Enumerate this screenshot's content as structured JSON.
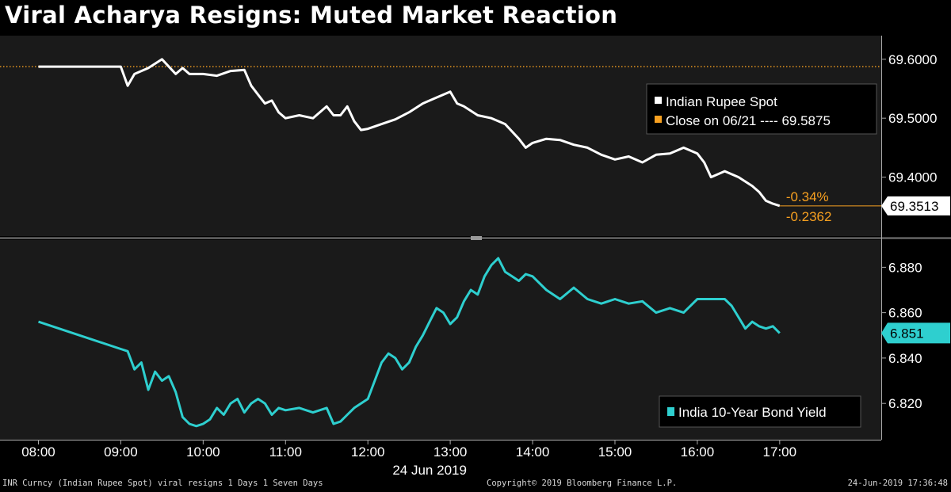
{
  "title": "Viral Acharya Resigns: Muted Market Reaction",
  "colors": {
    "rupee_line": "#ffffff",
    "close_line": "#f7a020",
    "bond_line": "#2ecfcf",
    "panel_bg": "#1a1a1a",
    "change_text": "#f7a020"
  },
  "chart_data": [
    {
      "type": "line",
      "panel": "top",
      "ylim": [
        69.3,
        69.64
      ],
      "yticks": [
        69.4,
        69.5,
        69.6
      ],
      "ytick_labels": [
        "69.4000",
        "69.5000",
        "69.6000"
      ],
      "series": [
        {
          "name": "Indian Rupee Spot",
          "x": [
            "08:00",
            "09:00",
            "09:05",
            "09:10",
            "09:20",
            "09:30",
            "09:40",
            "09:45",
            "09:50",
            "10:00",
            "10:10",
            "10:20",
            "10:30",
            "10:35",
            "10:40",
            "10:45",
            "10:50",
            "10:55",
            "11:00",
            "11:10",
            "11:20",
            "11:30",
            "11:35",
            "11:40",
            "11:45",
            "11:50",
            "11:55",
            "12:00",
            "12:10",
            "12:20",
            "12:30",
            "12:40",
            "12:50",
            "13:00",
            "13:05",
            "13:10",
            "13:20",
            "13:30",
            "13:40",
            "13:50",
            "13:55",
            "14:00",
            "14:10",
            "14:20",
            "14:30",
            "14:40",
            "14:50",
            "15:00",
            "15:10",
            "15:20",
            "15:30",
            "15:40",
            "15:50",
            "16:00",
            "16:05",
            "16:10",
            "16:15",
            "16:20",
            "16:30",
            "16:40",
            "16:45",
            "16:50",
            "16:55",
            "17:00"
          ],
          "values": [
            69.5875,
            69.5875,
            69.555,
            69.575,
            69.585,
            69.6,
            69.575,
            69.585,
            69.575,
            69.575,
            69.572,
            69.58,
            69.582,
            69.555,
            69.54,
            69.525,
            69.53,
            69.51,
            69.5,
            69.505,
            69.5,
            69.52,
            69.505,
            69.505,
            69.52,
            69.495,
            69.48,
            69.482,
            69.49,
            69.498,
            69.51,
            69.525,
            69.535,
            69.545,
            69.525,
            69.52,
            69.505,
            69.5,
            69.49,
            69.465,
            69.45,
            69.458,
            69.465,
            69.463,
            69.455,
            69.45,
            69.438,
            69.43,
            69.435,
            69.425,
            69.438,
            69.44,
            69.45,
            69.44,
            69.425,
            69.4,
            69.405,
            69.41,
            69.4,
            69.385,
            69.375,
            69.36,
            69.355,
            69.3513
          ]
        },
        {
          "name": "Close on 06/21",
          "value": 69.5875
        }
      ],
      "legend": {
        "position": "top-right",
        "entries": [
          "Indian Rupee Spot",
          "Close on 06/21 ---- 69.5875"
        ]
      },
      "last_value_label": "69.3513",
      "change_percent": "-0.34%",
      "change_abs": "-0.2362"
    },
    {
      "type": "line",
      "panel": "bottom",
      "ylim": [
        6.804,
        6.892
      ],
      "yticks": [
        6.82,
        6.84,
        6.86,
        6.88
      ],
      "ytick_labels": [
        "6.820",
        "6.840",
        "6.860",
        "6.880"
      ],
      "series": [
        {
          "name": "India 10-Year Bond Yield",
          "x": [
            "08:00",
            "09:00",
            "09:05",
            "09:10",
            "09:15",
            "09:20",
            "09:25",
            "09:30",
            "09:35",
            "09:40",
            "09:45",
            "09:50",
            "09:55",
            "10:00",
            "10:05",
            "10:10",
            "10:15",
            "10:20",
            "10:25",
            "10:30",
            "10:35",
            "10:40",
            "10:45",
            "10:50",
            "10:55",
            "11:00",
            "11:10",
            "11:20",
            "11:30",
            "11:35",
            "11:40",
            "11:45",
            "11:50",
            "12:00",
            "12:05",
            "12:10",
            "12:15",
            "12:20",
            "12:25",
            "12:30",
            "12:35",
            "12:40",
            "12:45",
            "12:50",
            "12:55",
            "13:00",
            "13:05",
            "13:10",
            "13:15",
            "13:20",
            "13:25",
            "13:30",
            "13:35",
            "13:40",
            "13:45",
            "13:50",
            "13:55",
            "14:00",
            "14:10",
            "14:20",
            "14:30",
            "14:40",
            "14:50",
            "15:00",
            "15:10",
            "15:20",
            "15:30",
            "15:40",
            "15:50",
            "16:00",
            "16:10",
            "16:20",
            "16:25",
            "16:30",
            "16:35",
            "16:40",
            "16:45",
            "16:50",
            "16:55",
            "17:00"
          ],
          "values": [
            6.856,
            6.844,
            6.843,
            6.835,
            6.838,
            6.826,
            6.834,
            6.83,
            6.832,
            6.825,
            6.814,
            6.811,
            6.81,
            6.811,
            6.813,
            6.818,
            6.815,
            6.82,
            6.822,
            6.816,
            6.82,
            6.822,
            6.82,
            6.815,
            6.818,
            6.817,
            6.818,
            6.816,
            6.818,
            6.811,
            6.812,
            6.815,
            6.818,
            6.822,
            6.83,
            6.838,
            6.842,
            6.84,
            6.835,
            6.838,
            6.845,
            6.85,
            6.856,
            6.862,
            6.86,
            6.855,
            6.858,
            6.865,
            6.87,
            6.868,
            6.876,
            6.881,
            6.884,
            6.878,
            6.876,
            6.874,
            6.877,
            6.876,
            6.87,
            6.866,
            6.871,
            6.866,
            6.864,
            6.866,
            6.864,
            6.865,
            6.86,
            6.862,
            6.86,
            6.866,
            6.866,
            6.866,
            6.863,
            6.858,
            6.853,
            6.856,
            6.854,
            6.853,
            6.854,
            6.851
          ]
        }
      ],
      "legend": {
        "position": "bottom-right",
        "entries": [
          "India 10-Year Bond Yield"
        ]
      },
      "last_value_label": "6.851"
    }
  ],
  "x_axis": {
    "ticks": [
      "08:00",
      "09:00",
      "10:00",
      "11:00",
      "12:00",
      "13:00",
      "14:00",
      "15:00",
      "16:00",
      "17:00"
    ],
    "date_label": "24 Jun 2019"
  },
  "footer": {
    "left": "INR Curncy (Indian Rupee Spot) viral resigns 1 Days 1 Seven Days",
    "center": "Copyright© 2019 Bloomberg Finance L.P.",
    "right": "24-Jun-2019 17:36:48"
  }
}
